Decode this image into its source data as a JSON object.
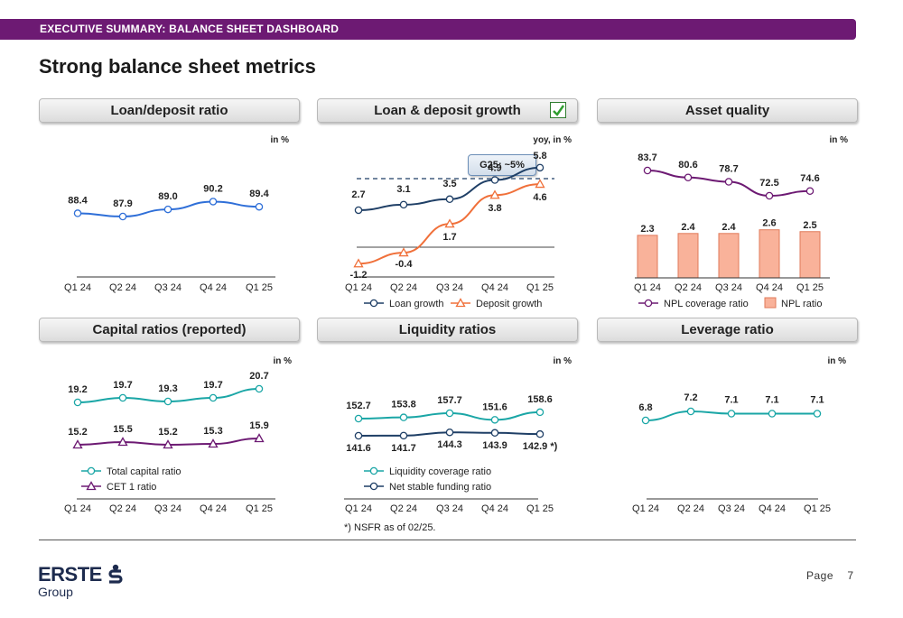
{
  "header": {
    "bar_text": "EXECUTIVE SUMMARY: BALANCE SHEET DASHBOARD",
    "title": "Strong balance sheet metrics"
  },
  "colors": {
    "brand_purple": "#6d1a73",
    "blue": "#2f6fd8",
    "navy": "#1f3f66",
    "orange": "#f0703a",
    "teal": "#1aa6a6",
    "purple": "#6d1a73",
    "npl_bar": "#f9b29a"
  },
  "panels": {
    "p1": {
      "title": "Loan/deposit ratio"
    },
    "p2": {
      "title": "Loan & deposit growth",
      "check": "✓"
    },
    "p3": {
      "title": "Asset quality"
    },
    "p4": {
      "title": "Capital ratios (reported)"
    },
    "p5": {
      "title": "Liquidity ratios"
    },
    "p6": {
      "title": "Leverage ratio"
    }
  },
  "guidance": "G25: ~5%",
  "footnote": "*) NSFR as of 02/25.",
  "footer": {
    "brand": "ERSTE",
    "group": "Group",
    "page_label": "Page",
    "page_number": "7"
  },
  "chart_data": [
    {
      "id": "p1",
      "type": "line",
      "unit": "in %",
      "categories": [
        "Q1 24",
        "Q2 24",
        "Q3 24",
        "Q4 24",
        "Q1 25"
      ],
      "series": [
        {
          "values": [
            88.4,
            87.9,
            89.0,
            90.2,
            89.4
          ],
          "labels": [
            "88.4",
            "87.9",
            "89.0",
            "90.2",
            "89.4"
          ]
        }
      ]
    },
    {
      "id": "p2",
      "type": "line",
      "unit": "yoy, in %",
      "categories": [
        "Q1 24",
        "Q2 24",
        "Q3 24",
        "Q4 24",
        "Q1 25"
      ],
      "series": [
        {
          "name": "Loan growth",
          "values": [
            2.7,
            3.1,
            3.5,
            4.9,
            5.8
          ],
          "labels": [
            "2.7",
            "3.1",
            "3.5",
            "4.9",
            "5.8"
          ]
        },
        {
          "name": "Deposit growth",
          "values": [
            -1.2,
            -0.4,
            1.7,
            3.8,
            4.6
          ],
          "labels": [
            "-1.2",
            "-0.4",
            "1.7",
            "3.8",
            "4.6"
          ]
        }
      ],
      "guidance_line": 5
    },
    {
      "id": "p3",
      "type": "bar+line",
      "unit": "in %",
      "categories": [
        "Q1 24",
        "Q2 24",
        "Q3 24",
        "Q4 24",
        "Q1 25"
      ],
      "series": [
        {
          "name": "NPL coverage ratio",
          "values": [
            83.7,
            80.6,
            78.7,
            72.5,
            74.6
          ],
          "labels": [
            "83.7",
            "80.6",
            "78.7",
            "72.5",
            "74.6"
          ]
        },
        {
          "name": "NPL ratio",
          "values": [
            2.3,
            2.4,
            2.4,
            2.6,
            2.5
          ],
          "labels": [
            "2.3",
            "2.4",
            "2.4",
            "2.6",
            "2.5"
          ]
        }
      ]
    },
    {
      "id": "p4",
      "type": "line",
      "unit": "in %",
      "categories": [
        "Q1 24",
        "Q2 24",
        "Q3 24",
        "Q4 24",
        "Q1 25"
      ],
      "series": [
        {
          "name": "Total capital ratio",
          "values": [
            19.2,
            19.7,
            19.3,
            19.7,
            20.7
          ],
          "labels": [
            "19.2",
            "19.7",
            "19.3",
            "19.7",
            "20.7"
          ]
        },
        {
          "name": "CET 1 ratio",
          "values": [
            15.2,
            15.5,
            15.2,
            15.3,
            15.9
          ],
          "labels": [
            "15.2",
            "15.5",
            "15.2",
            "15.3",
            "15.9"
          ]
        }
      ]
    },
    {
      "id": "p5",
      "type": "line",
      "unit": "in %",
      "categories": [
        "Q1 24",
        "Q2 24",
        "Q3 24",
        "Q4 24",
        "Q1 25"
      ],
      "series": [
        {
          "name": "Liquidity coverage ratio",
          "values": [
            152.7,
            153.8,
            157.7,
            151.6,
            158.6
          ],
          "labels": [
            "152.7",
            "153.8",
            "157.7",
            "151.6",
            "158.6"
          ]
        },
        {
          "name": "Net stable funding ratio",
          "values": [
            141.6,
            141.7,
            144.3,
            143.9,
            142.9
          ],
          "labels": [
            "141.6",
            "141.7",
            "144.3",
            "143.9",
            "142.9 *)"
          ]
        }
      ]
    },
    {
      "id": "p6",
      "type": "line",
      "unit": "in %",
      "categories": [
        "Q1 24",
        "Q2 24",
        "Q3 24",
        "Q4 24",
        "Q1 25"
      ],
      "series": [
        {
          "values": [
            6.8,
            7.2,
            7.1,
            7.1,
            7.1
          ],
          "labels": [
            "6.8",
            "7.2",
            "7.1",
            "7.1",
            "7.1"
          ]
        }
      ]
    }
  ]
}
